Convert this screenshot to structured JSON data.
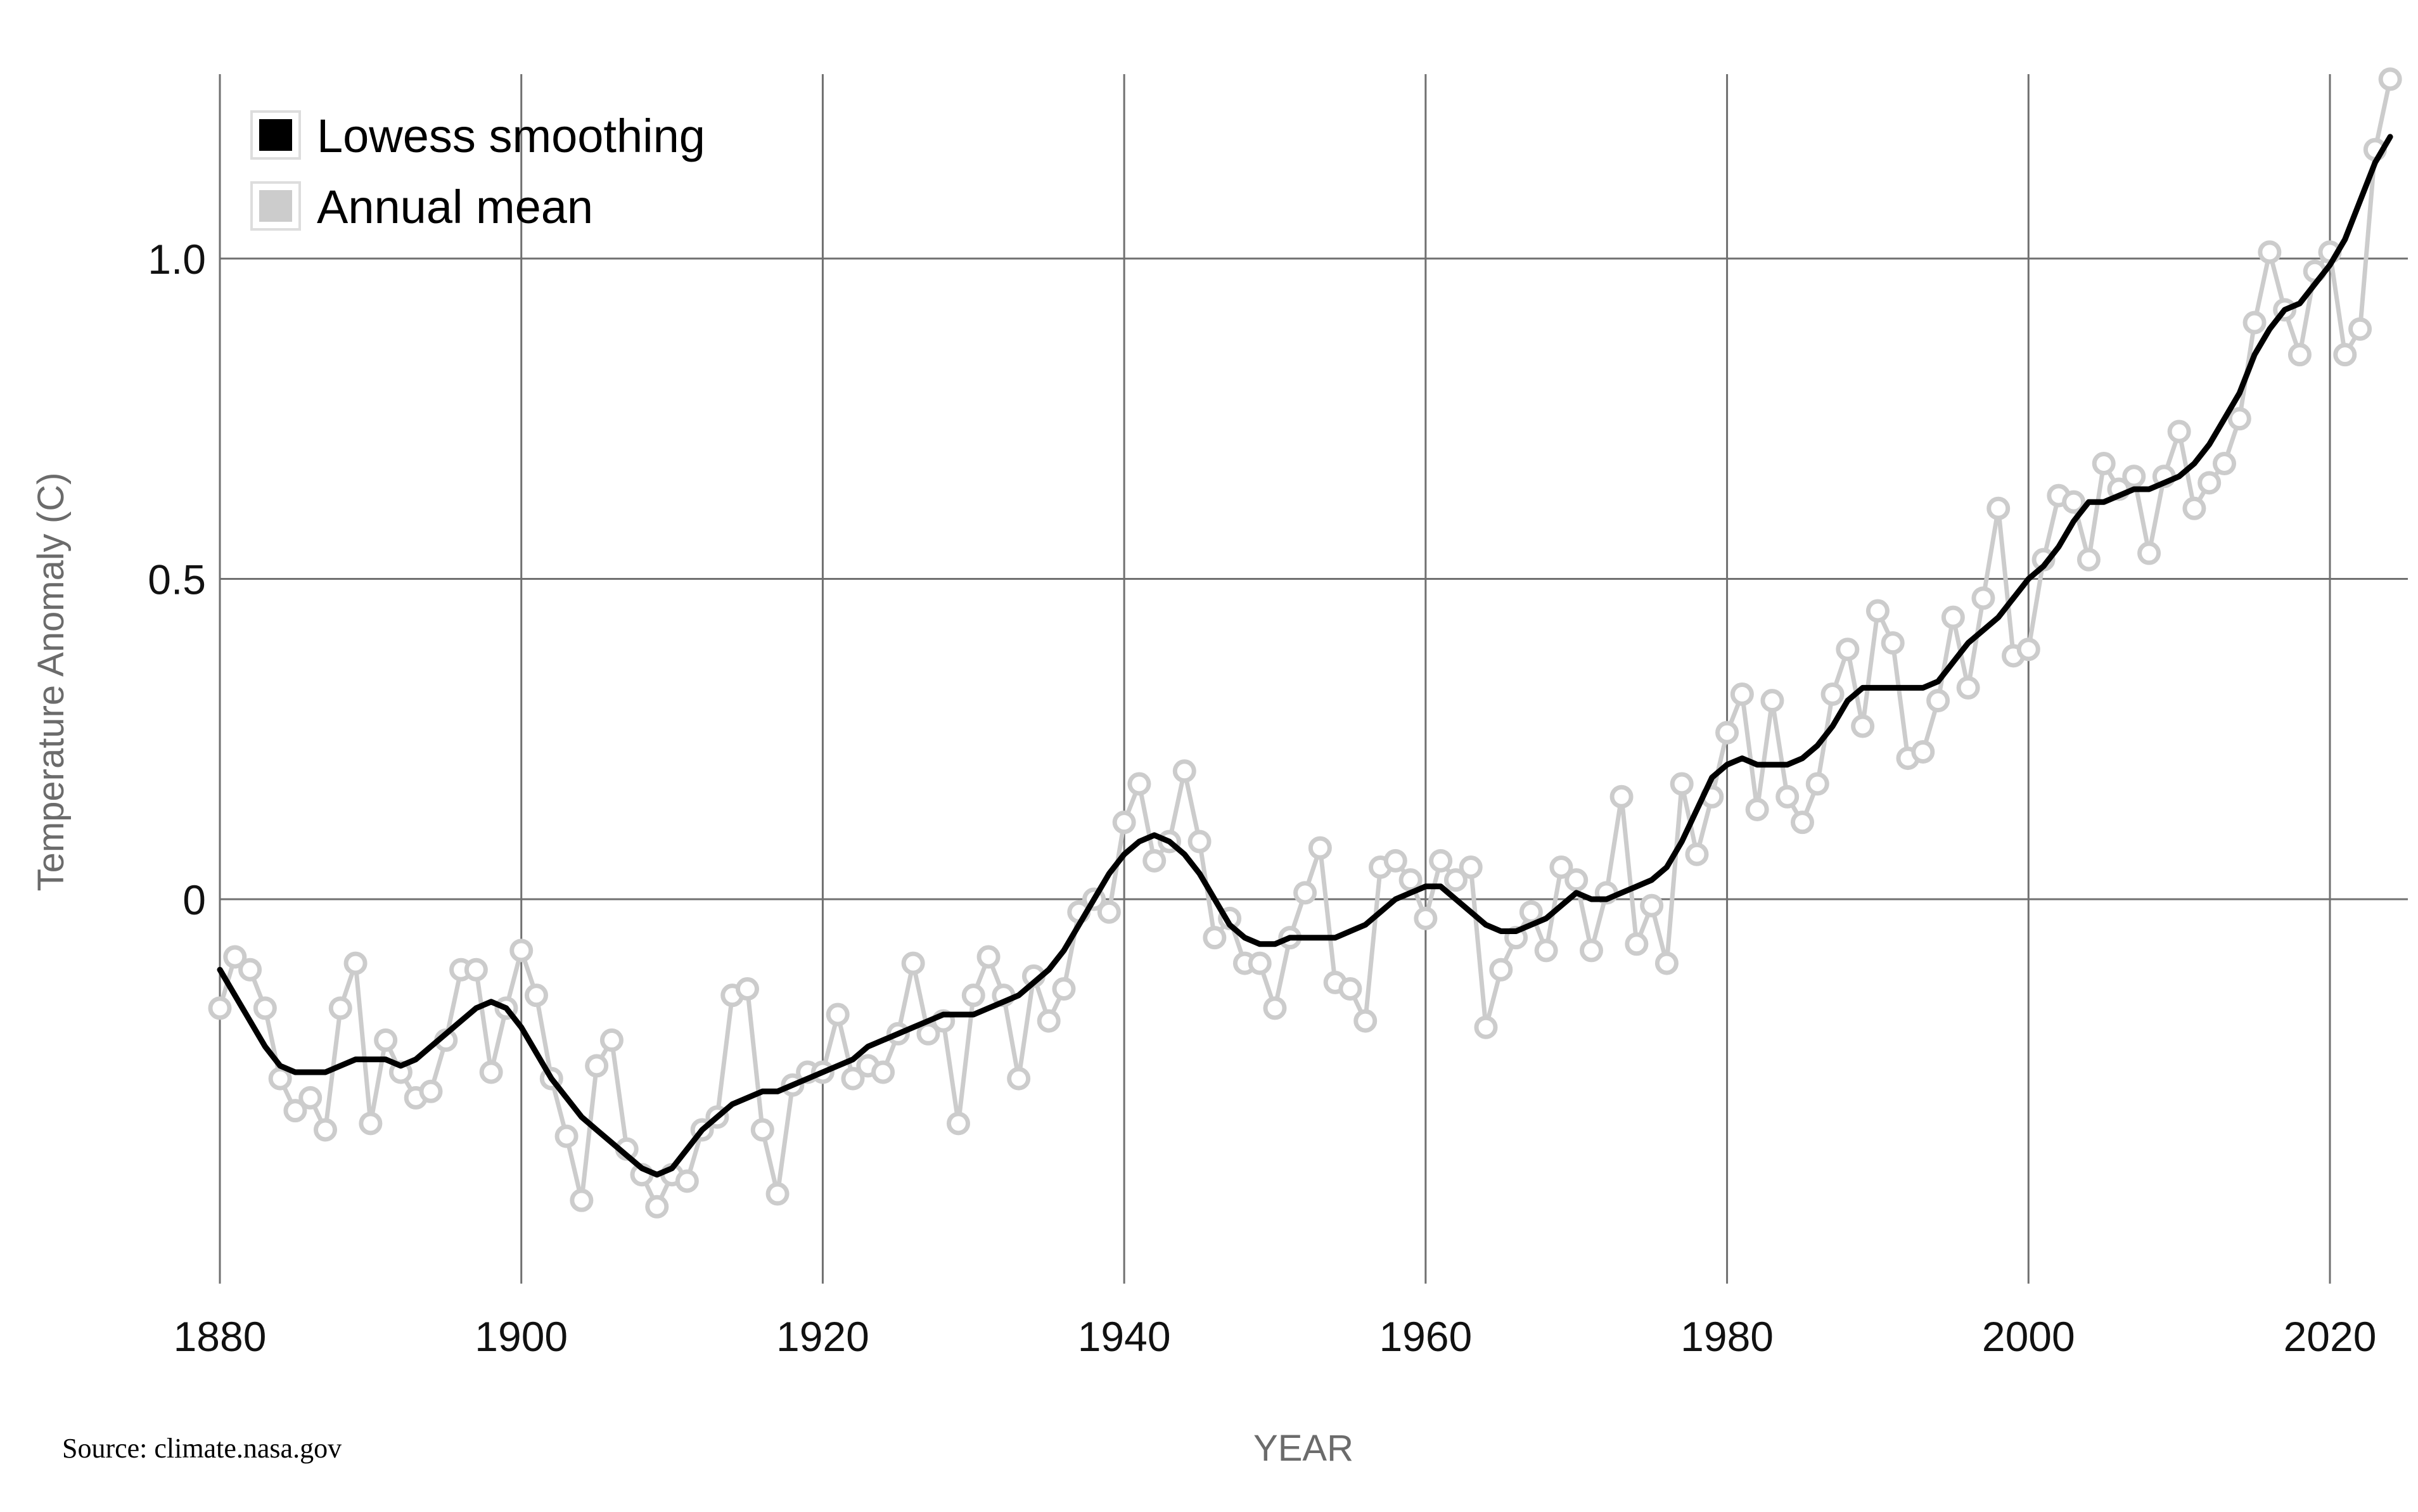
{
  "chart_data": {
    "type": "line",
    "title": "",
    "xlabel": "YEAR",
    "ylabel": "Temperature Anomaly (C)",
    "source": "Source: climate.nasa.gov",
    "xlim": [
      1880,
      2024
    ],
    "ylim": [
      -0.6,
      1.29
    ],
    "xticks": [
      "1880",
      "1900",
      "1920",
      "1940",
      "1960",
      "1980",
      "2000",
      "2020"
    ],
    "yticks": [
      "0",
      "0.5",
      "1.0"
    ],
    "grid": true,
    "legend_position": "top-left",
    "legend": [
      "Lowess smoothing",
      "Annual mean"
    ],
    "colors": {
      "lowess": "#000000",
      "annual": "#cccccc",
      "grid": "#707070"
    },
    "x_start": 1880,
    "series": [
      {
        "name": "Annual mean",
        "values": [
          -0.17,
          -0.09,
          -0.11,
          -0.17,
          -0.28,
          -0.33,
          -0.31,
          -0.36,
          -0.17,
          -0.1,
          -0.35,
          -0.22,
          -0.27,
          -0.31,
          -0.3,
          -0.22,
          -0.11,
          -0.11,
          -0.27,
          -0.17,
          -0.08,
          -0.15,
          -0.28,
          -0.37,
          -0.47,
          -0.26,
          -0.22,
          -0.39,
          -0.43,
          -0.48,
          -0.43,
          -0.44,
          -0.36,
          -0.34,
          -0.15,
          -0.14,
          -0.36,
          -0.46,
          -0.29,
          -0.27,
          -0.27,
          -0.18,
          -0.28,
          -0.26,
          -0.27,
          -0.21,
          -0.1,
          -0.21,
          -0.19,
          -0.35,
          -0.15,
          -0.09,
          -0.15,
          -0.28,
          -0.12,
          -0.19,
          -0.14,
          -0.02,
          0.0,
          -0.02,
          0.12,
          0.18,
          0.06,
          0.09,
          0.2,
          0.09,
          -0.06,
          -0.03,
          -0.1,
          -0.1,
          -0.17,
          -0.06,
          0.01,
          0.08,
          -0.13,
          -0.14,
          -0.19,
          0.05,
          0.06,
          0.03,
          -0.03,
          0.06,
          0.03,
          0.05,
          -0.2,
          -0.11,
          -0.06,
          -0.02,
          -0.08,
          0.05,
          0.03,
          -0.08,
          0.01,
          0.16,
          -0.07,
          -0.01,
          -0.1,
          0.18,
          0.07,
          0.16,
          0.26,
          0.32,
          0.14,
          0.31,
          0.16,
          0.12,
          0.18,
          0.32,
          0.39,
          0.27,
          0.45,
          0.4,
          0.22,
          0.23,
          0.31,
          0.44,
          0.33,
          0.47,
          0.61,
          0.38,
          0.39,
          0.53,
          0.63,
          0.62,
          0.53,
          0.68,
          0.64,
          0.66,
          0.54,
          0.66,
          0.73,
          0.61,
          0.65,
          0.68,
          0.75,
          0.9,
          1.01,
          0.92,
          0.85,
          0.98,
          1.01,
          0.85,
          0.89,
          1.17,
          1.28
        ]
      },
      {
        "name": "Lowess smoothing",
        "values": [
          -0.11,
          -0.15,
          -0.19,
          -0.23,
          -0.26,
          -0.27,
          -0.27,
          -0.27,
          -0.26,
          -0.25,
          -0.25,
          -0.25,
          -0.26,
          -0.25,
          -0.23,
          -0.21,
          -0.19,
          -0.17,
          -0.16,
          -0.17,
          -0.2,
          -0.24,
          -0.28,
          -0.31,
          -0.34,
          -0.36,
          -0.38,
          -0.4,
          -0.42,
          -0.43,
          -0.42,
          -0.39,
          -0.36,
          -0.34,
          -0.32,
          -0.31,
          -0.3,
          -0.3,
          -0.29,
          -0.28,
          -0.27,
          -0.26,
          -0.25,
          -0.23,
          -0.22,
          -0.21,
          -0.2,
          -0.19,
          -0.18,
          -0.18,
          -0.18,
          -0.17,
          -0.16,
          -0.15,
          -0.13,
          -0.11,
          -0.08,
          -0.04,
          0.0,
          0.04,
          0.07,
          0.09,
          0.1,
          0.09,
          0.07,
          0.04,
          0.0,
          -0.04,
          -0.06,
          -0.07,
          -0.07,
          -0.06,
          -0.06,
          -0.06,
          -0.06,
          -0.05,
          -0.04,
          -0.02,
          0.0,
          0.01,
          0.02,
          0.02,
          0.0,
          -0.02,
          -0.04,
          -0.05,
          -0.05,
          -0.04,
          -0.03,
          -0.01,
          0.01,
          0.0,
          0.0,
          0.01,
          0.02,
          0.03,
          0.05,
          0.09,
          0.14,
          0.19,
          0.21,
          0.22,
          0.21,
          0.21,
          0.21,
          0.22,
          0.24,
          0.27,
          0.31,
          0.33,
          0.33,
          0.33,
          0.33,
          0.33,
          0.34,
          0.37,
          0.4,
          0.42,
          0.44,
          0.47,
          0.5,
          0.52,
          0.55,
          0.59,
          0.62,
          0.62,
          0.63,
          0.64,
          0.64,
          0.65,
          0.66,
          0.68,
          0.71,
          0.75,
          0.79,
          0.85,
          0.89,
          0.92,
          0.93,
          0.96,
          0.99,
          1.03,
          1.09,
          1.15,
          1.19
        ]
      }
    ]
  }
}
